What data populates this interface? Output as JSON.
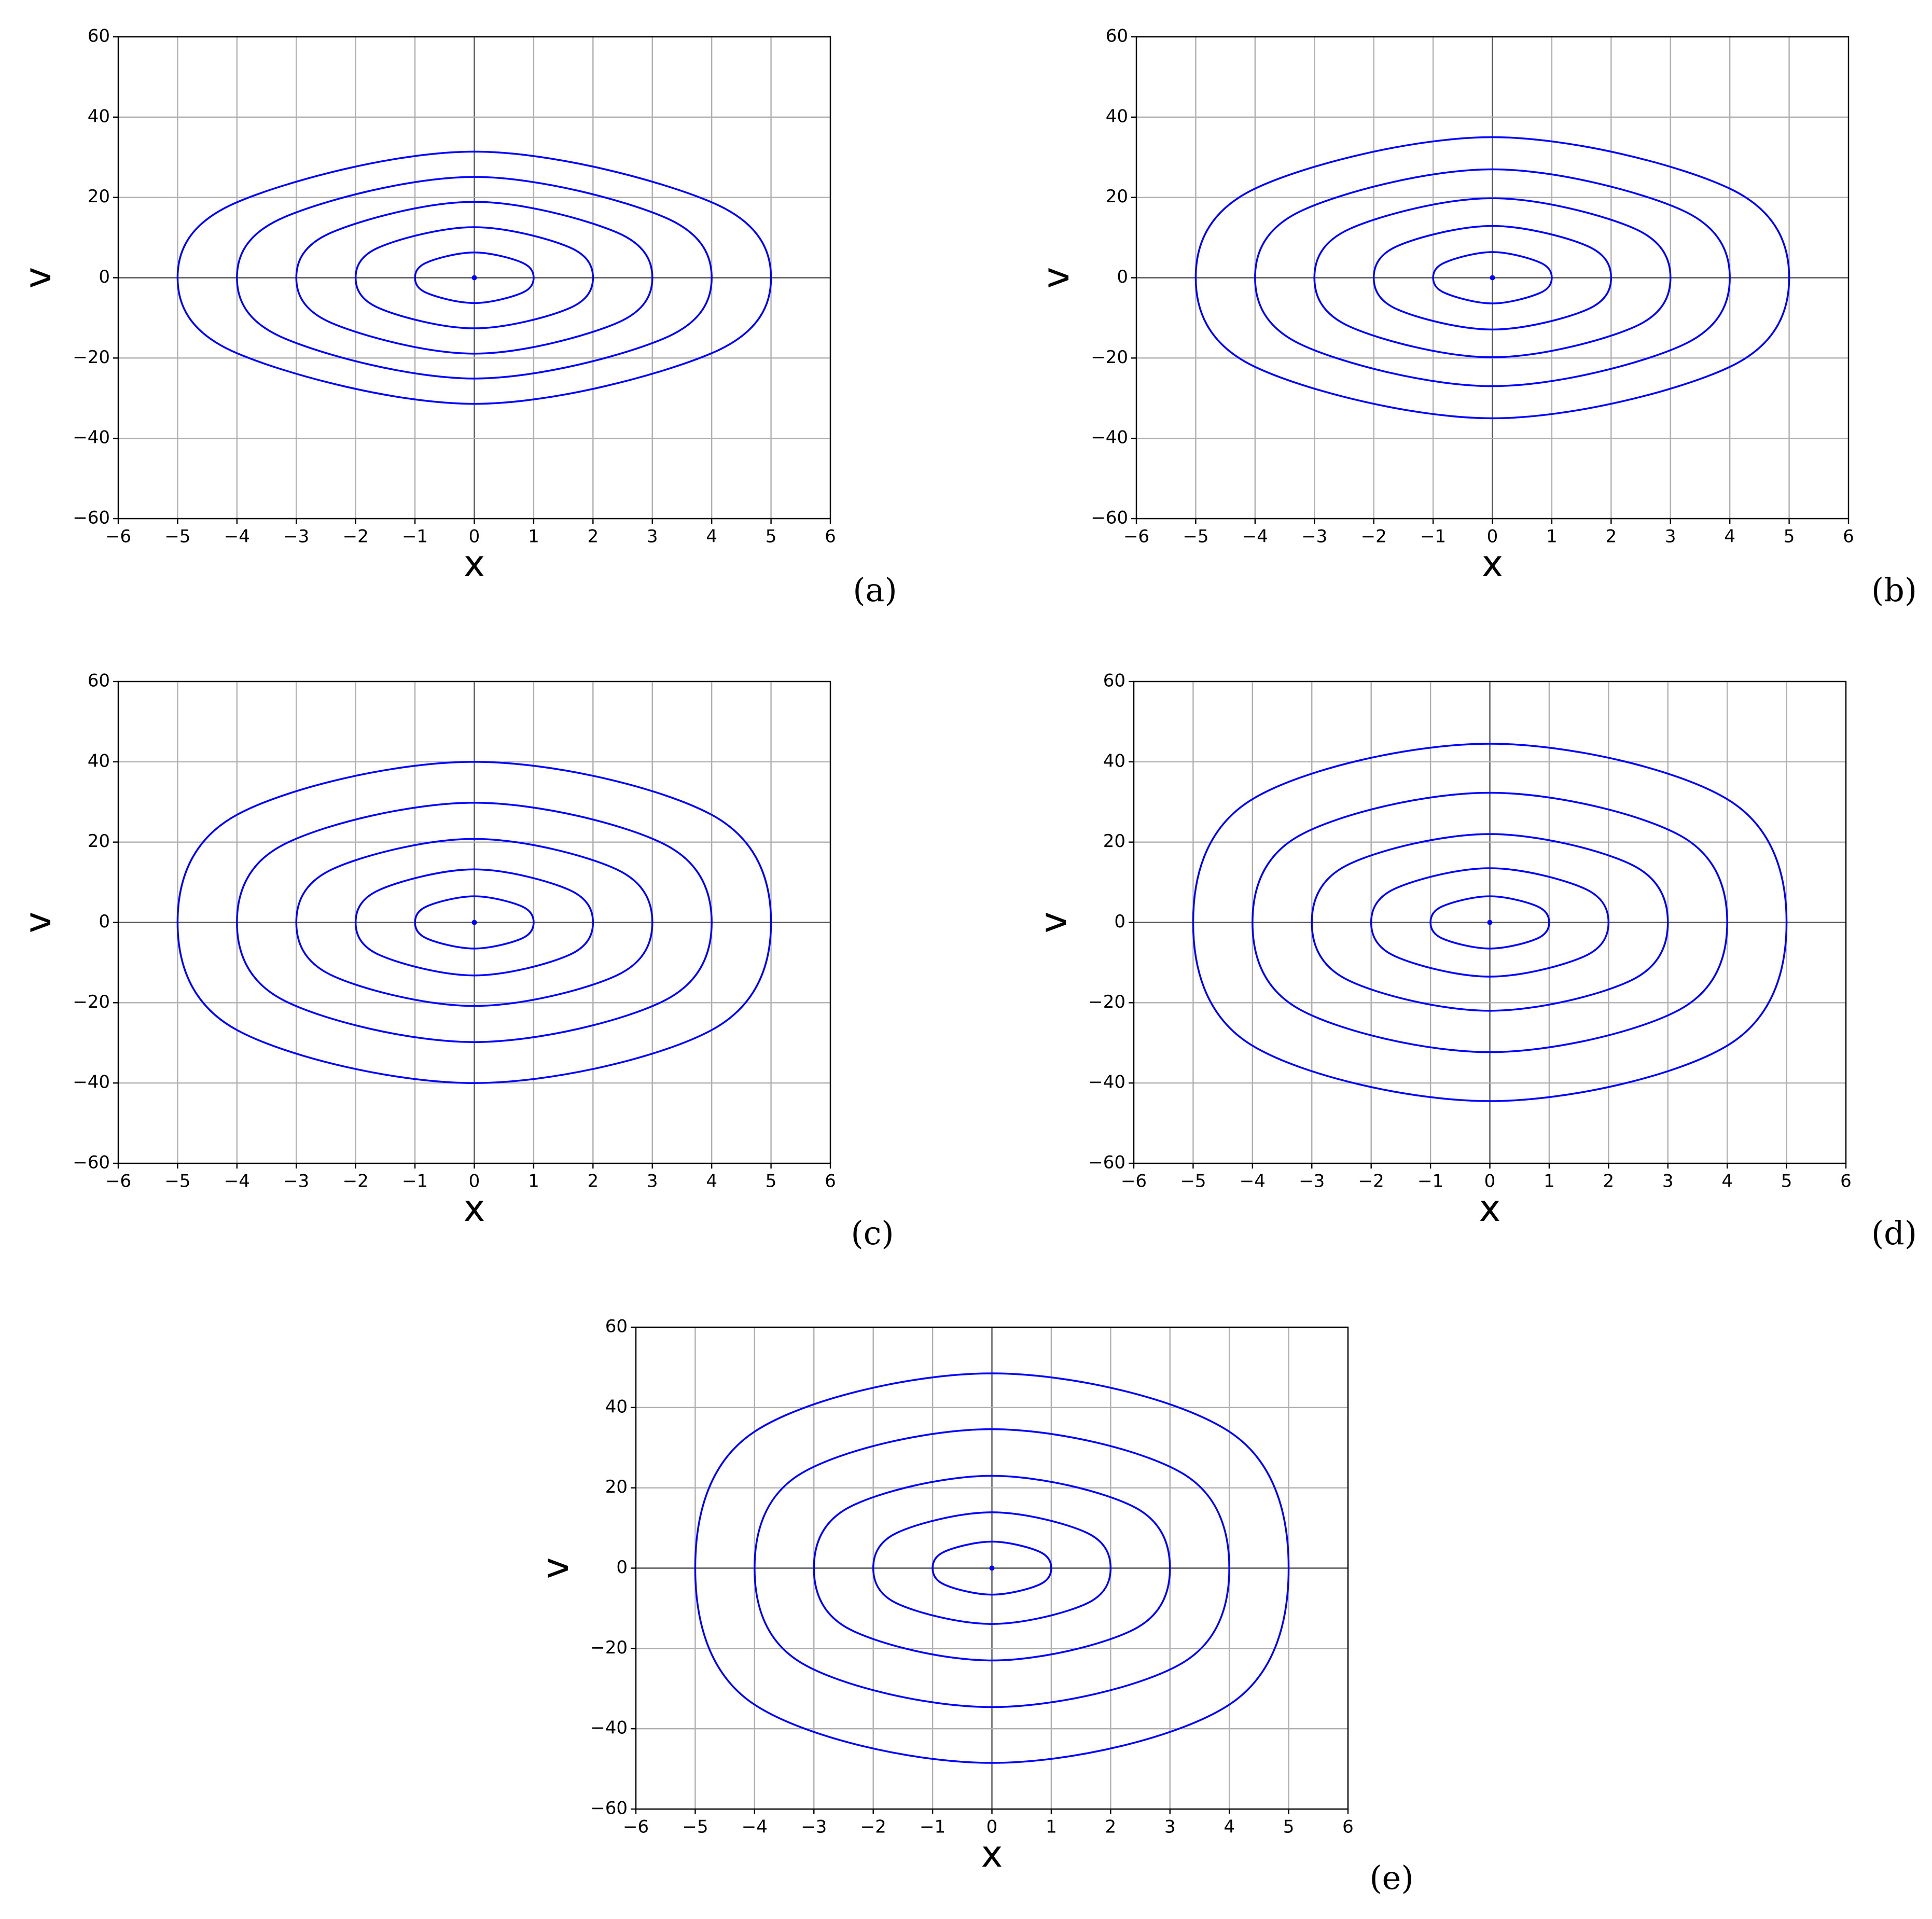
{
  "chart_data": [
    {
      "type": "line",
      "label": "(a)",
      "xlabel": "x",
      "ylabel": "v",
      "xlim": [
        -6,
        6
      ],
      "ylim": [
        -60,
        60
      ],
      "grid": true,
      "xticks": [
        {
          "value": -6,
          "label": "−6"
        },
        {
          "value": -5,
          "label": "−5"
        },
        {
          "value": -4,
          "label": "−4"
        },
        {
          "value": -3,
          "label": "−3"
        },
        {
          "value": -2,
          "label": "−2"
        },
        {
          "value": -1,
          "label": "−1"
        },
        0,
        1,
        2,
        3,
        4,
        5,
        6
      ],
      "yticks": [
        {
          "value": -60,
          "label": "−60"
        },
        {
          "value": -40,
          "label": "−40"
        },
        {
          "value": -20,
          "label": "−20"
        },
        0,
        20,
        40,
        60
      ],
      "series": [
        {
          "color": "#0000ff",
          "x": [
            -1,
            -0.8,
            0,
            0.8,
            1,
            0.8,
            0,
            -0.8
          ],
          "values": [
            0,
            3.8,
            6.3,
            3.8,
            0,
            -3.8,
            -6.3,
            -3.8
          ]
        },
        {
          "color": "#0000ff",
          "x": [
            -2,
            -1.6,
            0,
            1.6,
            2,
            1.6,
            0,
            -1.6
          ],
          "values": [
            0,
            7.6,
            12.6,
            7.6,
            0,
            -7.6,
            -12.6,
            -7.6
          ]
        },
        {
          "color": "#0000ff",
          "x": [
            -3,
            -2.4,
            0,
            2.4,
            3,
            2.4,
            0,
            -2.4
          ],
          "values": [
            0,
            11.3,
            18.9,
            11.3,
            0,
            -11.3,
            -18.9,
            -11.3
          ]
        },
        {
          "color": "#0000ff",
          "x": [
            -4,
            -3.2,
            0,
            3.2,
            4,
            3.2,
            0,
            -3.2
          ],
          "values": [
            0,
            15.1,
            25.1,
            15.1,
            0,
            -15.1,
            -25.1,
            -15.1
          ]
        },
        {
          "color": "#0000ff",
          "x": [
            -5,
            -4,
            0,
            4,
            5,
            4,
            0,
            -4
          ],
          "values": [
            0,
            18.8,
            31.4,
            18.8,
            0,
            -18.8,
            -31.4,
            -18.8
          ]
        },
        {
          "color": "#0000ff",
          "marker": true,
          "x": [
            0
          ],
          "values": [
            0
          ]
        }
      ]
    },
    {
      "type": "line",
      "label": "(b)",
      "xlabel": "x",
      "ylabel": "v",
      "xlim": [
        -6,
        6
      ],
      "ylim": [
        -60,
        60
      ],
      "grid": true,
      "xticks": [
        {
          "value": -6,
          "label": "−6"
        },
        {
          "value": -5,
          "label": "−5"
        },
        {
          "value": -4,
          "label": "−4"
        },
        {
          "value": -3,
          "label": "−3"
        },
        {
          "value": -2,
          "label": "−2"
        },
        {
          "value": -1,
          "label": "−1"
        },
        0,
        1,
        2,
        3,
        4,
        5,
        6
      ],
      "yticks": [
        {
          "value": -60,
          "label": "−60"
        },
        {
          "value": -40,
          "label": "−40"
        },
        {
          "value": -20,
          "label": "−20"
        },
        0,
        20,
        40,
        60
      ],
      "series": [
        {
          "color": "#0000ff",
          "x": [
            -1,
            -0.8,
            0,
            0.8,
            1,
            0.8,
            0,
            -0.8
          ],
          "values": [
            0,
            3.8,
            6.4,
            3.8,
            0,
            -3.8,
            -6.4,
            -3.8
          ]
        },
        {
          "color": "#0000ff",
          "x": [
            -2,
            -1.6,
            0,
            1.6,
            2,
            1.6,
            0,
            -1.6
          ],
          "values": [
            0,
            7.9,
            12.9,
            7.9,
            0,
            -7.9,
            -12.9,
            -7.9
          ]
        },
        {
          "color": "#0000ff",
          "x": [
            -3,
            -2.4,
            0,
            2.4,
            3,
            2.4,
            0,
            -2.4
          ],
          "values": [
            0,
            12.2,
            19.8,
            12.2,
            0,
            -12.2,
            -19.8,
            -12.2
          ]
        },
        {
          "color": "#0000ff",
          "x": [
            -4,
            -3.2,
            0,
            3.2,
            4,
            3.2,
            0,
            -3.2
          ],
          "values": [
            0,
            16.8,
            27,
            16.8,
            0,
            -16.8,
            -27,
            -16.8
          ]
        },
        {
          "color": "#0000ff",
          "x": [
            -5,
            -4,
            0,
            4,
            5,
            4,
            0,
            -4
          ],
          "values": [
            0,
            22.2,
            35,
            22.2,
            0,
            -22.2,
            -35,
            -22.2
          ]
        },
        {
          "color": "#0000ff",
          "marker": true,
          "x": [
            0
          ],
          "values": [
            0
          ]
        }
      ]
    },
    {
      "type": "line",
      "label": "(c)",
      "xlabel": "x",
      "ylabel": "v",
      "xlim": [
        -6,
        6
      ],
      "ylim": [
        -60,
        60
      ],
      "grid": true,
      "xticks": [
        {
          "value": -6,
          "label": "−6"
        },
        {
          "value": -5,
          "label": "−5"
        },
        {
          "value": -4,
          "label": "−4"
        },
        {
          "value": -3,
          "label": "−3"
        },
        {
          "value": -2,
          "label": "−2"
        },
        {
          "value": -1,
          "label": "−1"
        },
        0,
        1,
        2,
        3,
        4,
        5,
        6
      ],
      "yticks": [
        {
          "value": -60,
          "label": "−60"
        },
        {
          "value": -40,
          "label": "−40"
        },
        {
          "value": -20,
          "label": "−20"
        },
        0,
        20,
        40,
        60
      ],
      "series": [
        {
          "color": "#0000ff",
          "x": [
            -1,
            -0.8,
            0,
            0.8,
            1,
            0.8,
            0,
            -0.8
          ],
          "values": [
            0,
            4,
            6.5,
            4,
            0,
            -4,
            -6.5,
            -4
          ]
        },
        {
          "color": "#0000ff",
          "x": [
            -2,
            -1.6,
            0,
            1.6,
            2,
            1.6,
            0,
            -1.6
          ],
          "values": [
            0,
            8.1,
            13.2,
            8.1,
            0,
            -8.1,
            -13.2,
            -8.1
          ]
        },
        {
          "color": "#0000ff",
          "x": [
            -3,
            -2.4,
            0,
            2.4,
            3,
            2.4,
            0,
            -2.4
          ],
          "values": [
            0,
            13.2,
            20.8,
            13.2,
            0,
            -13.2,
            -20.8,
            -13.2
          ]
        },
        {
          "color": "#0000ff",
          "x": [
            -4,
            -3.2,
            0,
            3.2,
            4,
            3.2,
            0,
            -3.2
          ],
          "values": [
            0,
            19.5,
            29.8,
            19.5,
            0,
            -19.5,
            -29.8,
            -19.5
          ]
        },
        {
          "color": "#0000ff",
          "x": [
            -5,
            -4,
            0,
            4,
            5,
            4,
            0,
            -4
          ],
          "values": [
            0,
            26.8,
            40,
            26.8,
            0,
            -26.8,
            -40,
            -26.8
          ]
        },
        {
          "color": "#0000ff",
          "marker": true,
          "x": [
            0
          ],
          "values": [
            0
          ]
        }
      ]
    },
    {
      "type": "line",
      "label": "(d)",
      "xlabel": "x",
      "ylabel": "v",
      "xlim": [
        -6,
        6
      ],
      "ylim": [
        -60,
        60
      ],
      "grid": true,
      "xticks": [
        {
          "value": -6,
          "label": "−6"
        },
        {
          "value": -5,
          "label": "−5"
        },
        {
          "value": -4,
          "label": "−4"
        },
        {
          "value": -3,
          "label": "−3"
        },
        {
          "value": -2,
          "label": "−2"
        },
        {
          "value": -1,
          "label": "−1"
        },
        0,
        1,
        2,
        3,
        4,
        5,
        6
      ],
      "yticks": [
        {
          "value": -60,
          "label": "−60"
        },
        {
          "value": -40,
          "label": "−40"
        },
        {
          "value": -20,
          "label": "−20"
        },
        0,
        20,
        40,
        60
      ],
      "series": [
        {
          "color": "#0000ff",
          "x": [
            -1,
            -0.8,
            0,
            0.8,
            1,
            0.8,
            0,
            -0.8
          ],
          "values": [
            0,
            4,
            6.5,
            4,
            0,
            -4,
            -6.5,
            -4
          ]
        },
        {
          "color": "#0000ff",
          "x": [
            -2,
            -1.6,
            0,
            1.6,
            2,
            1.6,
            0,
            -1.6
          ],
          "values": [
            0,
            8.4,
            13.5,
            8.4,
            0,
            -8.4,
            -13.5,
            -8.4
          ]
        },
        {
          "color": "#0000ff",
          "x": [
            -3,
            -2.4,
            0,
            2.4,
            3,
            2.4,
            0,
            -2.4
          ],
          "values": [
            0,
            14.3,
            22,
            14.3,
            0,
            -14.3,
            -22,
            -14.3
          ]
        },
        {
          "color": "#0000ff",
          "x": [
            -4,
            -3.2,
            0,
            3.2,
            4,
            3.2,
            0,
            -3.2
          ],
          "values": [
            0,
            21.7,
            32.3,
            21.7,
            0,
            -21.7,
            -32.3,
            -21.7
          ]
        },
        {
          "color": "#0000ff",
          "x": [
            -5,
            -4,
            0,
            4,
            5,
            4,
            0,
            -4
          ],
          "values": [
            0,
            30.7,
            44.5,
            30.7,
            0,
            -30.7,
            -44.5,
            -30.7
          ]
        },
        {
          "color": "#0000ff",
          "marker": true,
          "x": [
            0
          ],
          "values": [
            0
          ]
        }
      ]
    },
    {
      "type": "line",
      "label": "(e)",
      "xlabel": "x",
      "ylabel": "v",
      "xlim": [
        -6,
        6
      ],
      "ylim": [
        -60,
        60
      ],
      "grid": true,
      "xticks": [
        {
          "value": -6,
          "label": "−6"
        },
        {
          "value": -5,
          "label": "−5"
        },
        {
          "value": -4,
          "label": "−4"
        },
        {
          "value": -3,
          "label": "−3"
        },
        {
          "value": -2,
          "label": "−2"
        },
        {
          "value": -1,
          "label": "−1"
        },
        0,
        1,
        2,
        3,
        4,
        5,
        6
      ],
      "yticks": [
        {
          "value": -60,
          "label": "−60"
        },
        {
          "value": -40,
          "label": "−40"
        },
        {
          "value": -20,
          "label": "−20"
        },
        0,
        20,
        40,
        60
      ],
      "series": [
        {
          "color": "#0000ff",
          "x": [
            -1,
            -0.8,
            0,
            0.8,
            1,
            0.8,
            0,
            -0.8
          ],
          "values": [
            0,
            4.1,
            6.6,
            4.1,
            0,
            -4.1,
            -6.6,
            -4.1
          ]
        },
        {
          "color": "#0000ff",
          "x": [
            -2,
            -1.6,
            0,
            1.6,
            2,
            1.6,
            0,
            -1.6
          ],
          "values": [
            0,
            8.8,
            13.9,
            8.8,
            0,
            -8.8,
            -13.9,
            -8.8
          ]
        },
        {
          "color": "#0000ff",
          "x": [
            -3,
            -2.4,
            0,
            2.4,
            3,
            2.4,
            0,
            -2.4
          ],
          "values": [
            0,
            15.2,
            23,
            15.2,
            0,
            -15.2,
            -23,
            -15.2
          ]
        },
        {
          "color": "#0000ff",
          "x": [
            -4,
            -3.2,
            0,
            3.2,
            4,
            3.2,
            0,
            -3.2
          ],
          "values": [
            0,
            23.7,
            34.6,
            23.7,
            0,
            -23.7,
            -34.6,
            -23.7
          ]
        },
        {
          "color": "#0000ff",
          "x": [
            -5,
            -4,
            0,
            4,
            5,
            4,
            0,
            -4
          ],
          "values": [
            0,
            34,
            48.5,
            34,
            0,
            -34,
            -48.5,
            -34
          ]
        },
        {
          "color": "#0000ff",
          "marker": true,
          "x": [
            0
          ],
          "values": [
            0
          ]
        }
      ]
    }
  ]
}
